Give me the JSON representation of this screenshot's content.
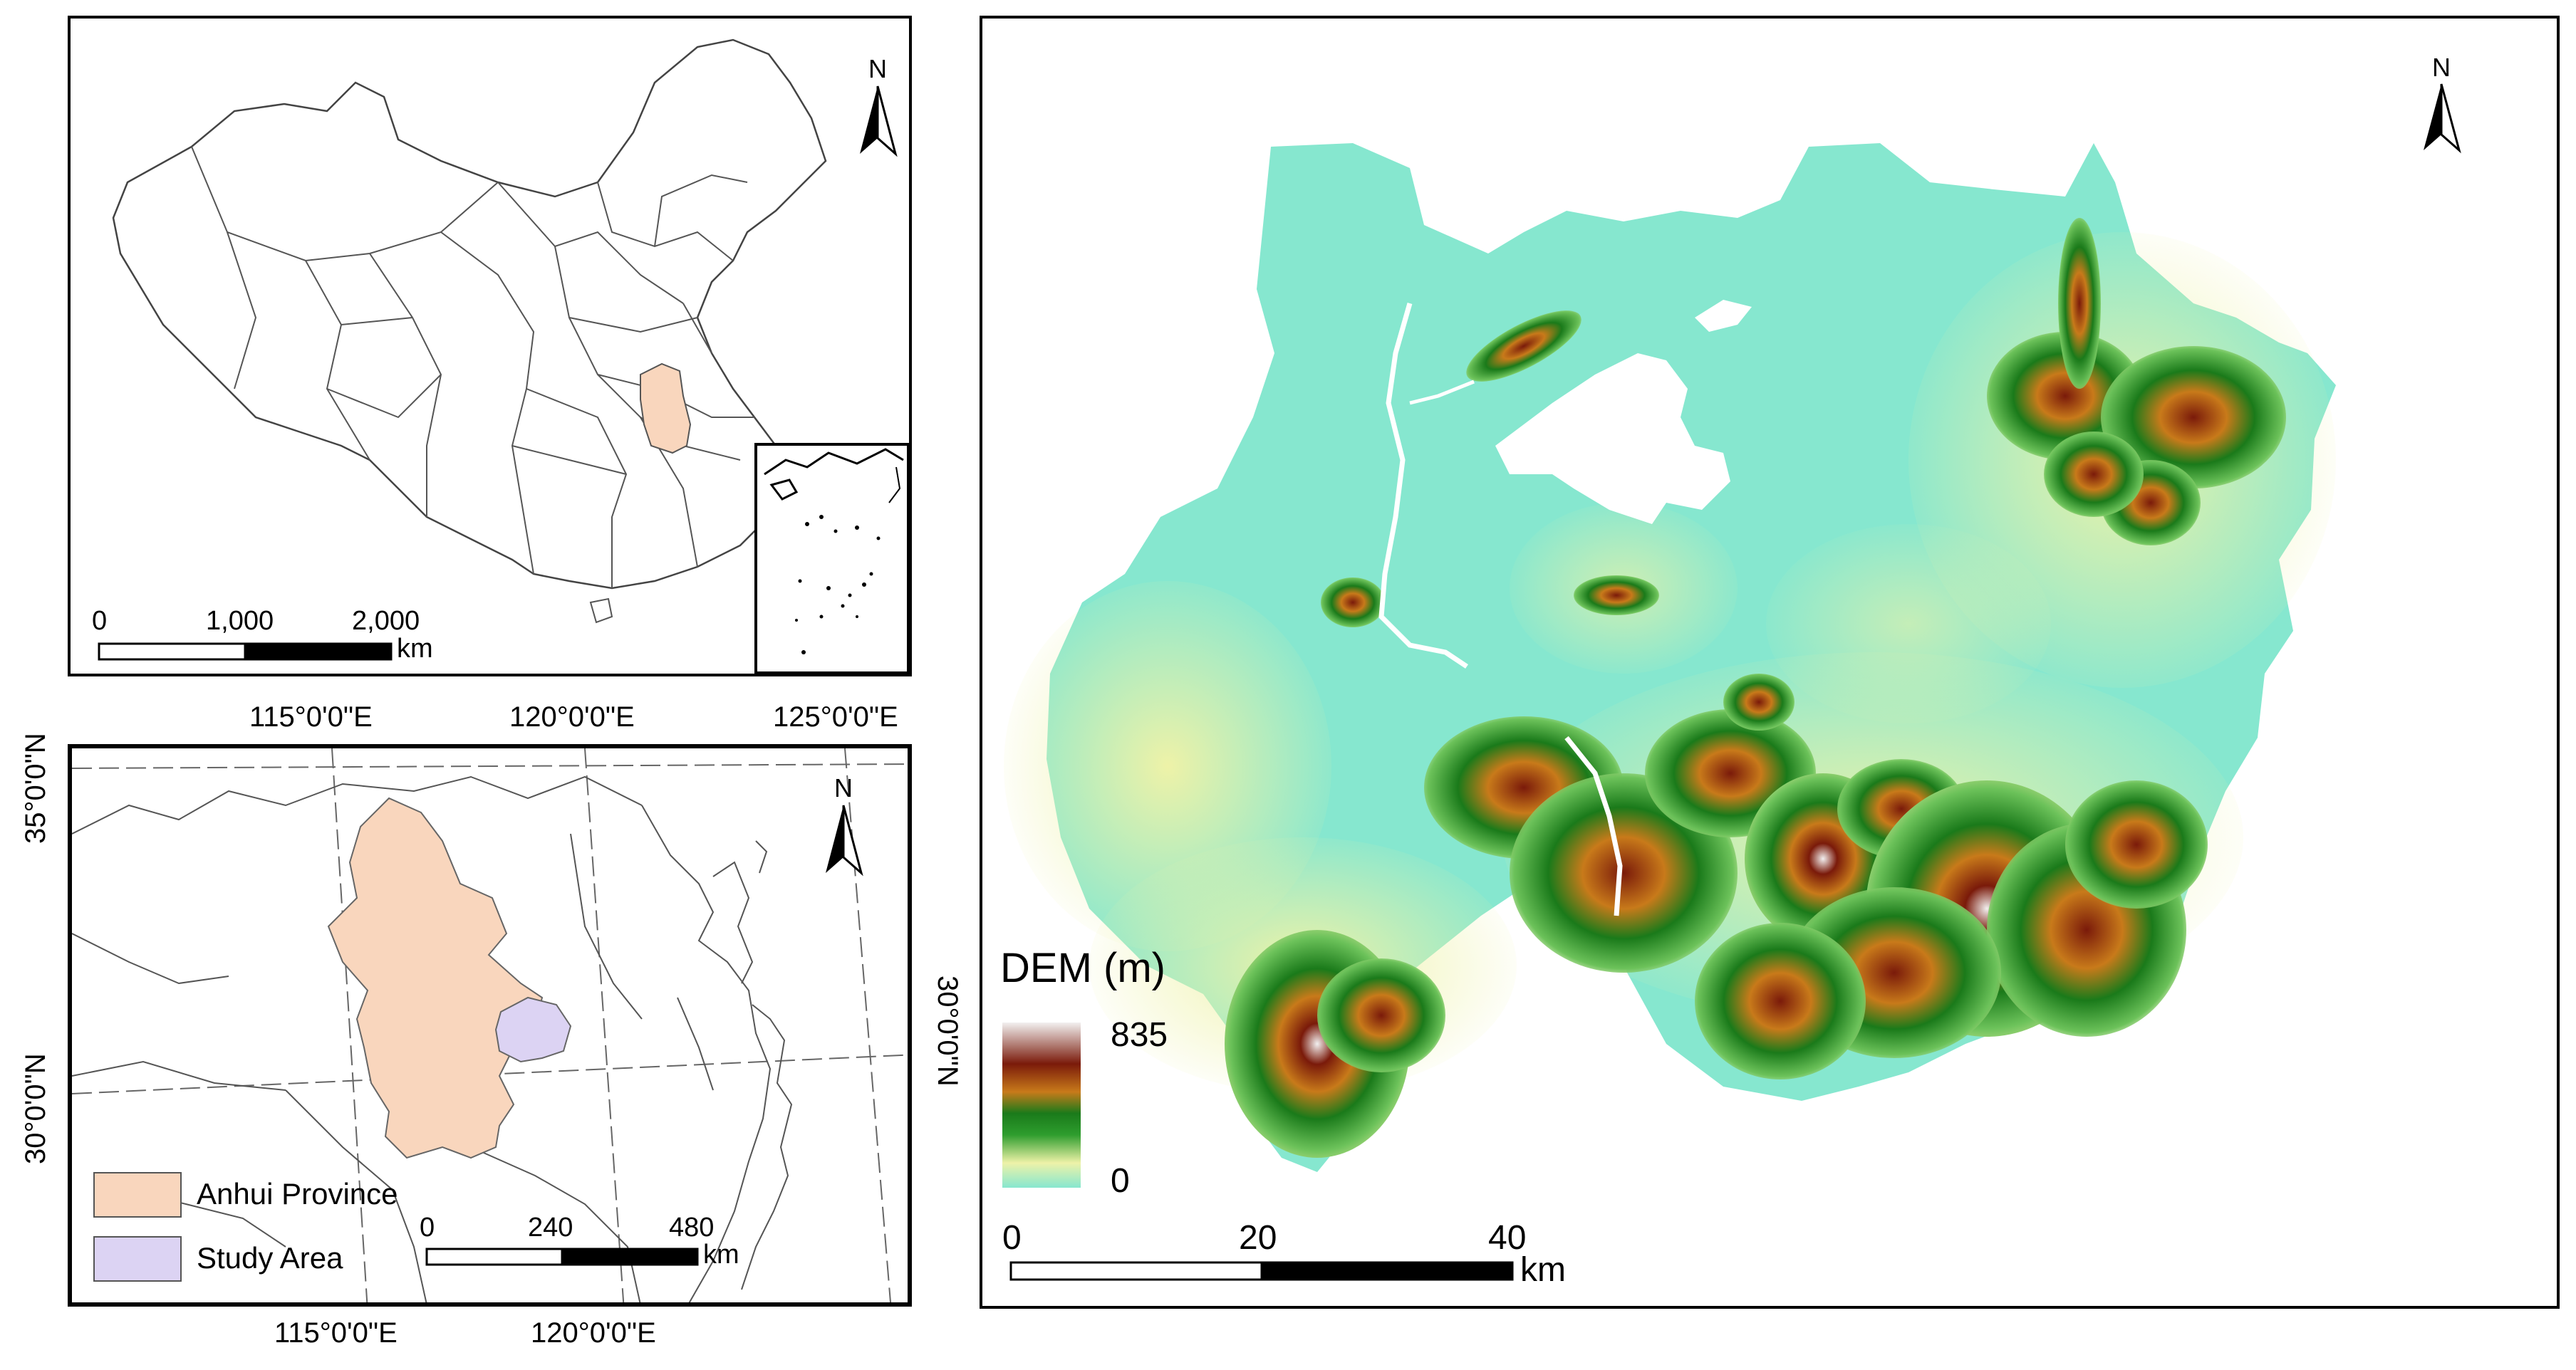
{
  "china_map": {
    "north_label": "N",
    "scale_labels": [
      "0",
      "1,000",
      "2,000"
    ],
    "scale_unit": "km"
  },
  "anhui_map": {
    "north_label": "N",
    "top_lon_labels": [
      "115°0'0\"E",
      "120°0'0\"E",
      "125°0'0\"E"
    ],
    "bottom_lon_labels": [
      "115°0'0\"E",
      "120°0'0\"E"
    ],
    "left_lat_labels": [
      "35°0'0\"N",
      "30°0'0\"N"
    ],
    "right_lat_label": "30°0'0\"N",
    "scale_labels": [
      "0",
      "240",
      "480"
    ],
    "scale_unit": "km",
    "legend": [
      {
        "label": "Anhui Province",
        "color": "#f9d6bd"
      },
      {
        "label": "Study Area",
        "color": "#dcd3f3"
      }
    ]
  },
  "dem_map": {
    "north_label": "N",
    "legend_title": "DEM (m)",
    "legend_max": "835",
    "legend_min": "0",
    "scale_labels": [
      "0",
      "20",
      "40"
    ],
    "scale_unit": "km",
    "colors": {
      "lowland": "#86e7cf",
      "plain": "#a6efc2",
      "hill_yellow": "#eef2a8",
      "green": "#2e9d2e",
      "dark_green": "#1a7a1a",
      "orange": "#c87a1a",
      "brown": "#7a1a0a",
      "peak": "#f2f0f0",
      "water": "#ffffff"
    }
  }
}
